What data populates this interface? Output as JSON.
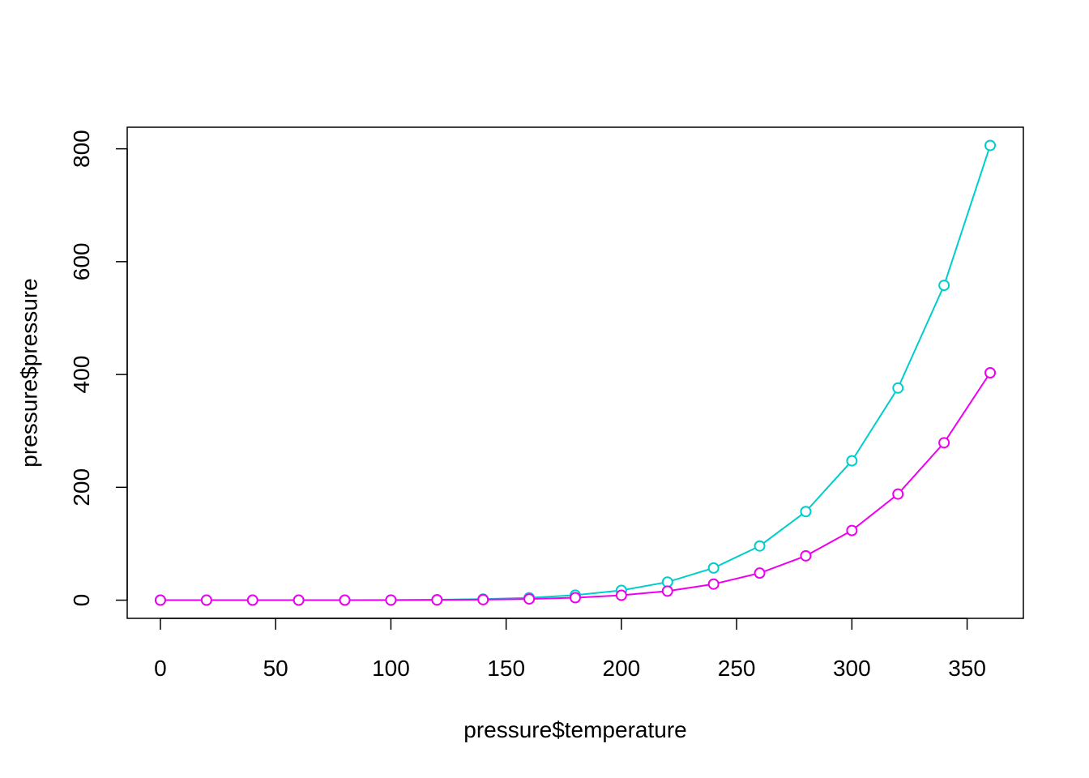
{
  "chart_data": {
    "type": "line",
    "x_label": "pressure$temperature",
    "y_label": "pressure$pressure",
    "x": [
      0,
      20,
      40,
      60,
      80,
      100,
      120,
      140,
      160,
      180,
      200,
      220,
      240,
      260,
      280,
      300,
      320,
      340,
      360
    ],
    "series": [
      {
        "color": "#00cdcd",
        "values": [
          0.0002,
          0.0012,
          0.006,
          0.03,
          0.09,
          0.27,
          0.75,
          1.85,
          4.2,
          8.8,
          17.3,
          32.1,
          57,
          96,
          157,
          247,
          376,
          558,
          806
        ]
      },
      {
        "color": "#ee00ee",
        "values": [
          0.0001,
          0.0006,
          0.003,
          0.015,
          0.045,
          0.135,
          0.375,
          0.925,
          2.1,
          4.4,
          8.65,
          16.05,
          28.5,
          48,
          78.5,
          123.5,
          188,
          279,
          403
        ]
      }
    ],
    "xlim": [
      -14.4,
      374.4
    ],
    "ylim": [
      -32.24,
      838.24
    ],
    "xticks": [
      0,
      50,
      100,
      150,
      200,
      250,
      300,
      350
    ],
    "yticks": [
      0,
      200,
      400,
      600,
      800
    ],
    "markers": "open-circle"
  }
}
